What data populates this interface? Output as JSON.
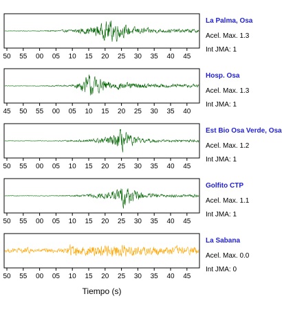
{
  "chart_data": {
    "type": "line",
    "xlabel": "Tiempo (s)",
    "panels": [
      {
        "station": "La Palma, Osa",
        "acel_max": "Acel. Max. 1.3",
        "int_jma": "Int JMA: 1",
        "color": "#006400",
        "ticks": [
          "50",
          "55",
          "00",
          "05",
          "10",
          "15",
          "20",
          "25",
          "30",
          "35",
          "40",
          "45"
        ],
        "envelope": [
          [
            0,
            0.02
          ],
          [
            10,
            0.02
          ],
          [
            16,
            0.06
          ],
          [
            20,
            0.12
          ],
          [
            26,
            0.3
          ],
          [
            30,
            0.6
          ],
          [
            33,
            1.0
          ],
          [
            36,
            0.55
          ],
          [
            40,
            0.3
          ],
          [
            49,
            0.15
          ]
        ]
      },
      {
        "station": "Hosp. Osa",
        "acel_max": "Acel. Max. 1.3",
        "int_jma": "Int JMA: 1",
        "color": "#006400",
        "ticks": [
          "45",
          "50",
          "55",
          "00",
          "05",
          "10",
          "15",
          "20",
          "25",
          "30",
          "35",
          "40"
        ],
        "envelope": [
          [
            0,
            0.02
          ],
          [
            12,
            0.03
          ],
          [
            20,
            0.08
          ],
          [
            22,
            0.2
          ],
          [
            24,
            0.45
          ],
          [
            26,
            1.0
          ],
          [
            28,
            0.7
          ],
          [
            32,
            0.35
          ],
          [
            38,
            0.25
          ],
          [
            49,
            0.15
          ]
        ]
      },
      {
        "station": "Est Bio Osa Verde, Osa",
        "acel_max": "Acel. Max. 1.2",
        "int_jma": "Int JMA: 1",
        "color": "#006400",
        "ticks": [
          "50",
          "55",
          "00",
          "05",
          "10",
          "15",
          "20",
          "25",
          "30",
          "35",
          "40",
          "45"
        ],
        "envelope": [
          [
            0,
            0.02
          ],
          [
            15,
            0.02
          ],
          [
            20,
            0.06
          ],
          [
            25,
            0.12
          ],
          [
            30,
            0.25
          ],
          [
            34,
            0.5
          ],
          [
            36,
            1.0
          ],
          [
            38,
            0.5
          ],
          [
            42,
            0.2
          ],
          [
            49,
            0.1
          ]
        ]
      },
      {
        "station": "Golfito CTP",
        "acel_max": "Acel. Max. 1.1",
        "int_jma": "Int JMA: 1",
        "color": "#006400",
        "ticks": [
          "50",
          "55",
          "00",
          "05",
          "10",
          "15",
          "20",
          "25",
          "30",
          "35",
          "40",
          "45"
        ],
        "envelope": [
          [
            0,
            0.02
          ],
          [
            15,
            0.02
          ],
          [
            20,
            0.05
          ],
          [
            25,
            0.12
          ],
          [
            30,
            0.22
          ],
          [
            34,
            0.45
          ],
          [
            37,
            1.0
          ],
          [
            40,
            0.4
          ],
          [
            44,
            0.2
          ],
          [
            49,
            0.12
          ]
        ]
      },
      {
        "station": "La Sabana",
        "acel_max": "Acel. Max. 0.0",
        "int_jma": "Int JMA: 0",
        "color": "#ffa500",
        "ticks": [
          "50",
          "55",
          "00",
          "05",
          "10",
          "15",
          "20",
          "25",
          "30",
          "35",
          "40",
          "45"
        ],
        "envelope": [
          [
            0,
            0.15
          ],
          [
            8,
            0.25
          ],
          [
            10,
            0.15
          ],
          [
            19,
            0.2
          ],
          [
            20,
            0.55
          ],
          [
            22,
            0.4
          ],
          [
            26,
            0.4
          ],
          [
            30,
            0.45
          ],
          [
            35,
            0.6
          ],
          [
            40,
            0.4
          ],
          [
            49,
            0.35
          ]
        ]
      }
    ]
  }
}
